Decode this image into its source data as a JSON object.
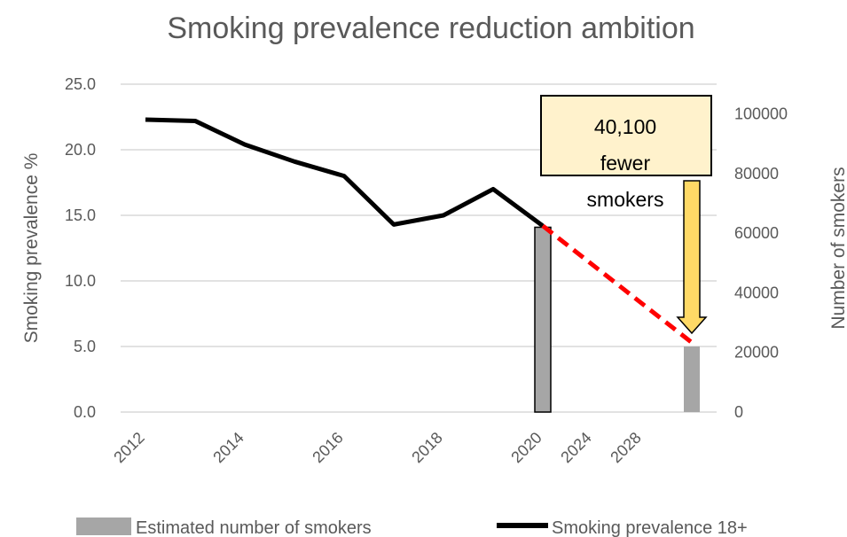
{
  "chart_data": {
    "type": "bar+line",
    "title": "Smoking prevalence reduction ambition",
    "categories": [
      "2012",
      "2013",
      "2014",
      "2015",
      "2016",
      "2017",
      "2018",
      "2019",
      "2020",
      "2024",
      "2028",
      "2030"
    ],
    "x_tick_labels": [
      "2012",
      "2014",
      "2016",
      "2018",
      "2020",
      "2024",
      "2028"
    ],
    "y_left": {
      "label": "Smoking prevalence %",
      "ylim": [
        0,
        25
      ],
      "ticks": [
        "0.0",
        "5.0",
        "10.0",
        "15.0",
        "20.0",
        "25.0"
      ]
    },
    "y_right": {
      "label": "Number of smokers",
      "ylim": [
        0,
        110000
      ],
      "ticks": [
        "0",
        "20000",
        "40000",
        "60000",
        "80000",
        "100000"
      ]
    },
    "series": [
      {
        "name": "Estimated number of smokers",
        "kind": "bar",
        "axis": "right",
        "color": "#a6a6a6",
        "points": [
          {
            "category": "2020",
            "value": 62000
          },
          {
            "category": "2030",
            "value": 22000
          }
        ]
      },
      {
        "name": "Smoking prevalence 18+",
        "kind": "line",
        "axis": "left",
        "color": "#000000",
        "points": [
          {
            "category": "2012",
            "value": 22.3
          },
          {
            "category": "2013",
            "value": 22.2
          },
          {
            "category": "2014",
            "value": 20.4
          },
          {
            "category": "2015",
            "value": 19.1
          },
          {
            "category": "2016",
            "value": 18.0
          },
          {
            "category": "2017",
            "value": 14.3
          },
          {
            "category": "2018",
            "value": 15.0
          },
          {
            "category": "2019",
            "value": 17.0
          },
          {
            "category": "2020",
            "value": 14.2
          }
        ]
      },
      {
        "kind": "dashed-line",
        "axis": "left",
        "color": "#ff0000",
        "points": [
          {
            "category": "2020",
            "value": 14.2
          },
          {
            "category": "2030",
            "value": 5.3
          }
        ]
      }
    ],
    "annotations": [
      {
        "lines": [
          "40,100",
          "fewer",
          "smokers"
        ],
        "fill": "#fff2cc",
        "arrow_color": "#ffd966",
        "points_to": "2030"
      }
    ],
    "legend": {
      "placement": "bottom"
    },
    "grid": true
  }
}
